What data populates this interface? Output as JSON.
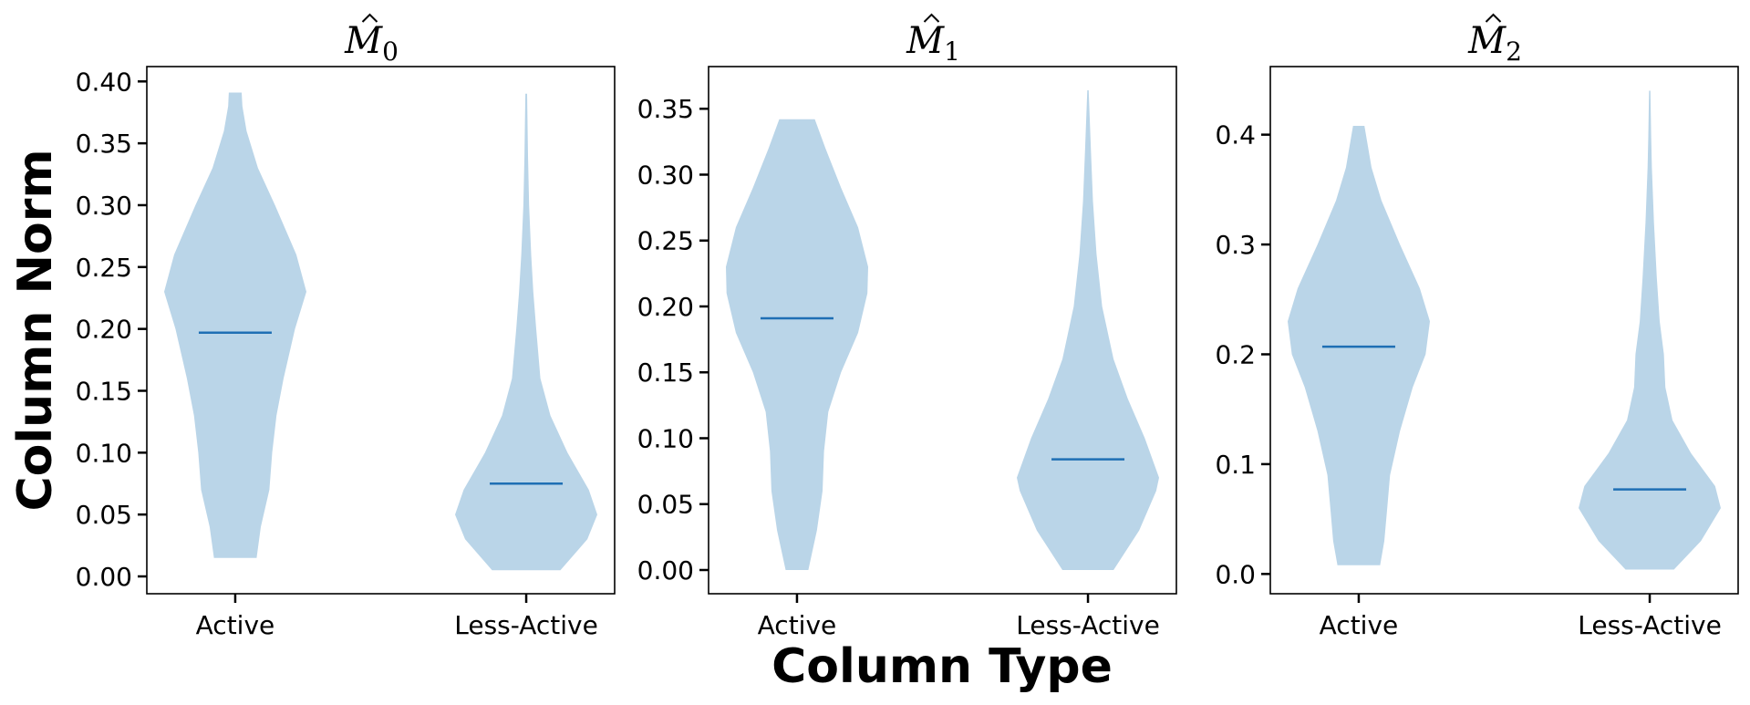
{
  "figure": {
    "ylabel": "Column Norm",
    "xlabel": "Column Type",
    "violin_color": "#bad5e8",
    "median_color": "#1f6fb4"
  },
  "chart_data": [
    {
      "type": "violin",
      "title_base": "M",
      "title_sub": "0",
      "categories": [
        "Active",
        "Less-Active"
      ],
      "ylim": [
        -0.014,
        0.412
      ],
      "yticks": [
        0.0,
        0.05,
        0.1,
        0.15,
        0.2,
        0.25,
        0.3,
        0.35,
        0.4
      ],
      "ytick_labels": [
        "0.00",
        "0.05",
        "0.10",
        "0.15",
        "0.20",
        "0.25",
        "0.30",
        "0.35",
        "0.40"
      ],
      "grid": false,
      "series": [
        {
          "category": "Active",
          "min": 0.015,
          "max": 0.391,
          "median": 0.197,
          "profile": [
            [
              0.015,
              0.3
            ],
            [
              0.04,
              0.36
            ],
            [
              0.07,
              0.48
            ],
            [
              0.1,
              0.52
            ],
            [
              0.13,
              0.58
            ],
            [
              0.16,
              0.68
            ],
            [
              0.2,
              0.84
            ],
            [
              0.23,
              1.0
            ],
            [
              0.26,
              0.86
            ],
            [
              0.3,
              0.56
            ],
            [
              0.33,
              0.32
            ],
            [
              0.36,
              0.16
            ],
            [
              0.38,
              0.1
            ],
            [
              0.391,
              0.09
            ]
          ]
        },
        {
          "category": "Less-Active",
          "min": 0.005,
          "max": 0.39,
          "median": 0.075,
          "profile": [
            [
              0.005,
              0.48
            ],
            [
              0.03,
              0.86
            ],
            [
              0.05,
              1.0
            ],
            [
              0.07,
              0.88
            ],
            [
              0.1,
              0.58
            ],
            [
              0.13,
              0.34
            ],
            [
              0.16,
              0.2
            ],
            [
              0.2,
              0.14
            ],
            [
              0.23,
              0.1
            ],
            [
              0.26,
              0.07
            ],
            [
              0.3,
              0.04
            ],
            [
              0.34,
              0.025
            ],
            [
              0.38,
              0.015
            ],
            [
              0.39,
              0.012
            ]
          ]
        }
      ]
    },
    {
      "type": "violin",
      "title_base": "M",
      "title_sub": "1",
      "categories": [
        "Active",
        "Less-Active"
      ],
      "ylim": [
        -0.018,
        0.382
      ],
      "yticks": [
        0.0,
        0.05,
        0.1,
        0.15,
        0.2,
        0.25,
        0.3,
        0.35
      ],
      "ytick_labels": [
        "0.00",
        "0.05",
        "0.10",
        "0.15",
        "0.20",
        "0.25",
        "0.30",
        "0.35"
      ],
      "grid": false,
      "series": [
        {
          "category": "Active",
          "min": 0.0,
          "max": 0.342,
          "median": 0.191,
          "profile": [
            [
              0.0,
              0.16
            ],
            [
              0.03,
              0.28
            ],
            [
              0.06,
              0.36
            ],
            [
              0.09,
              0.38
            ],
            [
              0.12,
              0.44
            ],
            [
              0.15,
              0.62
            ],
            [
              0.18,
              0.86
            ],
            [
              0.21,
              0.99
            ],
            [
              0.23,
              1.0
            ],
            [
              0.26,
              0.86
            ],
            [
              0.29,
              0.62
            ],
            [
              0.32,
              0.4
            ],
            [
              0.342,
              0.25
            ]
          ]
        },
        {
          "category": "Less-Active",
          "min": 0.0,
          "max": 0.364,
          "median": 0.084,
          "profile": [
            [
              0.0,
              0.36
            ],
            [
              0.03,
              0.72
            ],
            [
              0.06,
              0.96
            ],
            [
              0.07,
              1.0
            ],
            [
              0.1,
              0.8
            ],
            [
              0.13,
              0.56
            ],
            [
              0.16,
              0.36
            ],
            [
              0.2,
              0.2
            ],
            [
              0.24,
              0.12
            ],
            [
              0.28,
              0.07
            ],
            [
              0.32,
              0.04
            ],
            [
              0.364,
              0.01
            ]
          ]
        }
      ]
    },
    {
      "type": "violin",
      "title_base": "M",
      "title_sub": "2",
      "categories": [
        "Active",
        "Less-Active"
      ],
      "ylim": [
        -0.018,
        0.462
      ],
      "yticks": [
        0.0,
        0.1,
        0.2,
        0.3,
        0.4
      ],
      "ytick_labels": [
        "0.0",
        "0.1",
        "0.2",
        "0.3",
        "0.4"
      ],
      "grid": false,
      "series": [
        {
          "category": "Active",
          "min": 0.008,
          "max": 0.408,
          "median": 0.207,
          "profile": [
            [
              0.008,
              0.3
            ],
            [
              0.03,
              0.36
            ],
            [
              0.06,
              0.4
            ],
            [
              0.09,
              0.44
            ],
            [
              0.13,
              0.58
            ],
            [
              0.17,
              0.76
            ],
            [
              0.2,
              0.94
            ],
            [
              0.23,
              1.0
            ],
            [
              0.26,
              0.86
            ],
            [
              0.3,
              0.58
            ],
            [
              0.34,
              0.32
            ],
            [
              0.37,
              0.18
            ],
            [
              0.408,
              0.08
            ]
          ]
        },
        {
          "category": "Less-Active",
          "min": 0.004,
          "max": 0.44,
          "median": 0.077,
          "profile": [
            [
              0.004,
              0.34
            ],
            [
              0.03,
              0.72
            ],
            [
              0.06,
              1.0
            ],
            [
              0.08,
              0.92
            ],
            [
              0.11,
              0.58
            ],
            [
              0.14,
              0.32
            ],
            [
              0.17,
              0.22
            ],
            [
              0.2,
              0.2
            ],
            [
              0.23,
              0.14
            ],
            [
              0.27,
              0.1
            ],
            [
              0.32,
              0.06
            ],
            [
              0.37,
              0.03
            ],
            [
              0.4,
              0.02
            ],
            [
              0.44,
              0.01
            ]
          ]
        }
      ]
    }
  ]
}
